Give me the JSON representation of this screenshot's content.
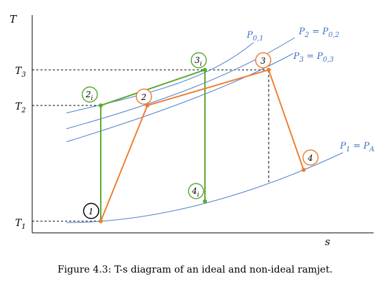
{
  "diagram": {
    "axes": {
      "y_label": "T",
      "x_label": "s"
    },
    "temperature_ticks": [
      {
        "key": "t3",
        "base": "T",
        "sub": "3"
      },
      {
        "key": "t2",
        "base": "T",
        "sub": "2"
      },
      {
        "key": "t1",
        "base": "T",
        "sub": "1"
      }
    ],
    "isobar_labels": [
      {
        "key": "p01",
        "text": "P",
        "sub": "0,1"
      },
      {
        "key": "p2",
        "text": "P",
        "sub": "2",
        "rhs": "P",
        "rhs_sub": "0,2"
      },
      {
        "key": "p3",
        "text": "P",
        "sub": "3",
        "rhs": "P",
        "rhs_sub": "0,3"
      },
      {
        "key": "p1",
        "text": "P",
        "sub": "1",
        "rhs": "P",
        "rhs_sub": "A"
      }
    ],
    "states": [
      {
        "key": "s1",
        "base": "1",
        "sub": "",
        "color": "#000000"
      },
      {
        "key": "s2i",
        "base": "2",
        "sub": "i",
        "color": "#5aa832"
      },
      {
        "key": "s2",
        "base": "2",
        "sub": "",
        "color": "#ee7d31"
      },
      {
        "key": "s3i",
        "base": "3",
        "sub": "i",
        "color": "#5aa832"
      },
      {
        "key": "s3",
        "base": "3",
        "sub": "",
        "color": "#ee7d31"
      },
      {
        "key": "s4i",
        "base": "4",
        "sub": "i",
        "color": "#5aa832"
      },
      {
        "key": "s4",
        "base": "4",
        "sub": "",
        "color": "#ee7d31"
      }
    ],
    "colors": {
      "ideal": "#5aa832",
      "non_ideal": "#ee7d31",
      "isobar": "#4a7cc9",
      "axis": "#000000"
    }
  },
  "caption": "Figure 4.3: T-s diagram of an ideal and non-ideal ramjet."
}
